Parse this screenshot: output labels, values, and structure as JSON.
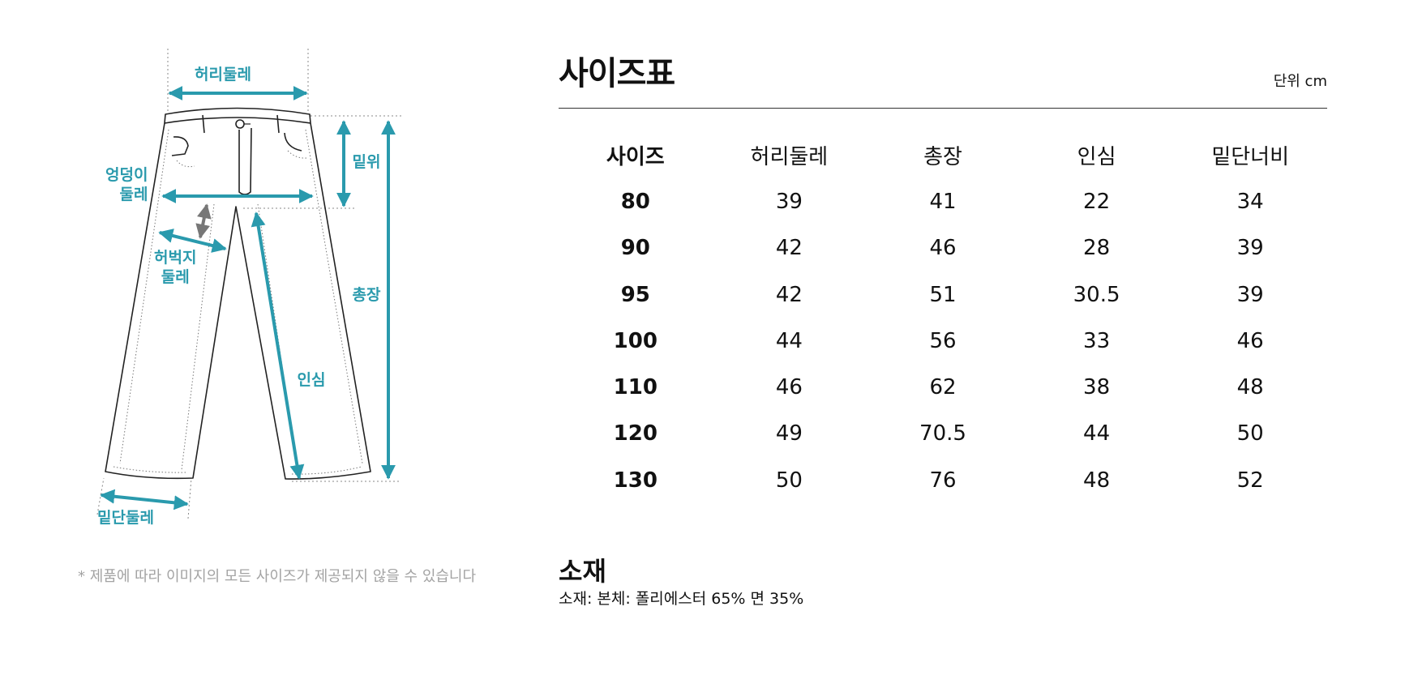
{
  "diagram": {
    "labels": {
      "waist": "허리둘레",
      "rise": "밑위",
      "hip_line1": "엉덩이",
      "hip_line2": "둘레",
      "thigh_line1": "허벅지",
      "thigh_line2": "둘레",
      "total_length": "총장",
      "inseam": "인심",
      "hem": "밑단둘레"
    },
    "accent_color": "#2a9aad",
    "thigh_arrow_color": "#777777"
  },
  "note": "* 제품에 따라 이미지의 모든 사이즈가 제공되지 않을 수 있습니다",
  "size_chart": {
    "title": "사이즈표",
    "unit": "단위 cm",
    "headers": [
      "사이즈",
      "허리둘레",
      "총장",
      "인심",
      "밑단너비"
    ],
    "rows": [
      [
        "80",
        "39",
        "41",
        "22",
        "34"
      ],
      [
        "90",
        "42",
        "46",
        "28",
        "39"
      ],
      [
        "95",
        "42",
        "51",
        "30.5",
        "39"
      ],
      [
        "100",
        "44",
        "56",
        "33",
        "46"
      ],
      [
        "110",
        "46",
        "62",
        "38",
        "48"
      ],
      [
        "120",
        "49",
        "70.5",
        "44",
        "50"
      ],
      [
        "130",
        "50",
        "76",
        "48",
        "52"
      ]
    ]
  },
  "material": {
    "title": "소재",
    "text": "소재: 본체: 폴리에스터 65% 면 35%"
  }
}
